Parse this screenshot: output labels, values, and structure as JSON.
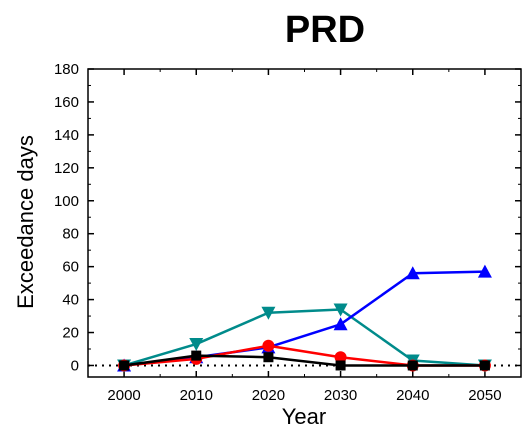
{
  "chart_data": {
    "type": "line",
    "title": "PRD",
    "xlabel": "Year",
    "ylabel": "Exceedance days",
    "x": [
      2000,
      2010,
      2020,
      2030,
      2040,
      2050
    ],
    "x_ticks": [
      "2000",
      "2010",
      "2020",
      "2030",
      "2040",
      "2050"
    ],
    "y_ticks": [
      "0",
      "20",
      "40",
      "60",
      "80",
      "100",
      "120",
      "140",
      "160",
      "180"
    ],
    "xlim": [
      1995,
      2055
    ],
    "ylim": [
      -7,
      180
    ],
    "grid": false,
    "legend": "none",
    "reference_line": {
      "y": 0,
      "style": "dotted",
      "color": "#000000"
    },
    "series": [
      {
        "color": "#000000",
        "marker": "square",
        "values": [
          0,
          6,
          5,
          0,
          0,
          0
        ]
      },
      {
        "color": "#ff0000",
        "marker": "circle",
        "values": [
          0,
          4,
          12,
          5,
          0,
          0
        ]
      },
      {
        "color": "#0000ff",
        "marker": "triangle-up",
        "values": [
          0,
          5,
          11,
          25,
          56,
          57
        ]
      },
      {
        "color": "#008b8b",
        "marker": "triangle-down",
        "values": [
          0,
          13,
          32,
          34,
          3,
          0
        ]
      }
    ]
  }
}
